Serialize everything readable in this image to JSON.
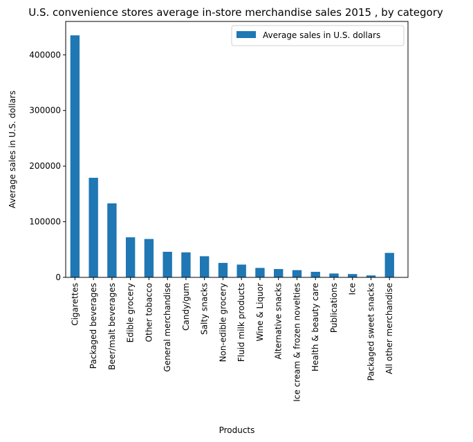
{
  "chart_data": {
    "type": "bar",
    "title": "U.S. convenience stores average in-store merchandise sales 2015 , by category",
    "xlabel": "Products",
    "ylabel": "Average sales in U.S. dollars",
    "ylim": [
      0,
      460000
    ],
    "yticks": [
      0,
      100000,
      200000,
      300000,
      400000
    ],
    "grid": false,
    "legend_position": "top-right",
    "bar_color": "#1f77b4",
    "categories": [
      "Cigarettes",
      "Packaged beverages",
      "Beer/malt beverages",
      "Edible grocery",
      "Other tobacco",
      "General merchandise",
      "Candy/gum",
      "Salty snacks",
      "Non-edible grocery",
      "Fluid milk products",
      "Wine & Liquor",
      "Alternative snacks",
      "Ice cream & frozen novelties",
      "Health & beauty care",
      "Publications",
      "Ice",
      "Packaged sweet snacks",
      "All other merchandise"
    ],
    "series": [
      {
        "name": "Average sales in U.S. dollars",
        "values": [
          435000,
          179000,
          133000,
          72000,
          69000,
          46000,
          45000,
          38000,
          26000,
          23000,
          17000,
          15000,
          13000,
          10000,
          7000,
          6000,
          3500,
          44000
        ]
      }
    ]
  }
}
